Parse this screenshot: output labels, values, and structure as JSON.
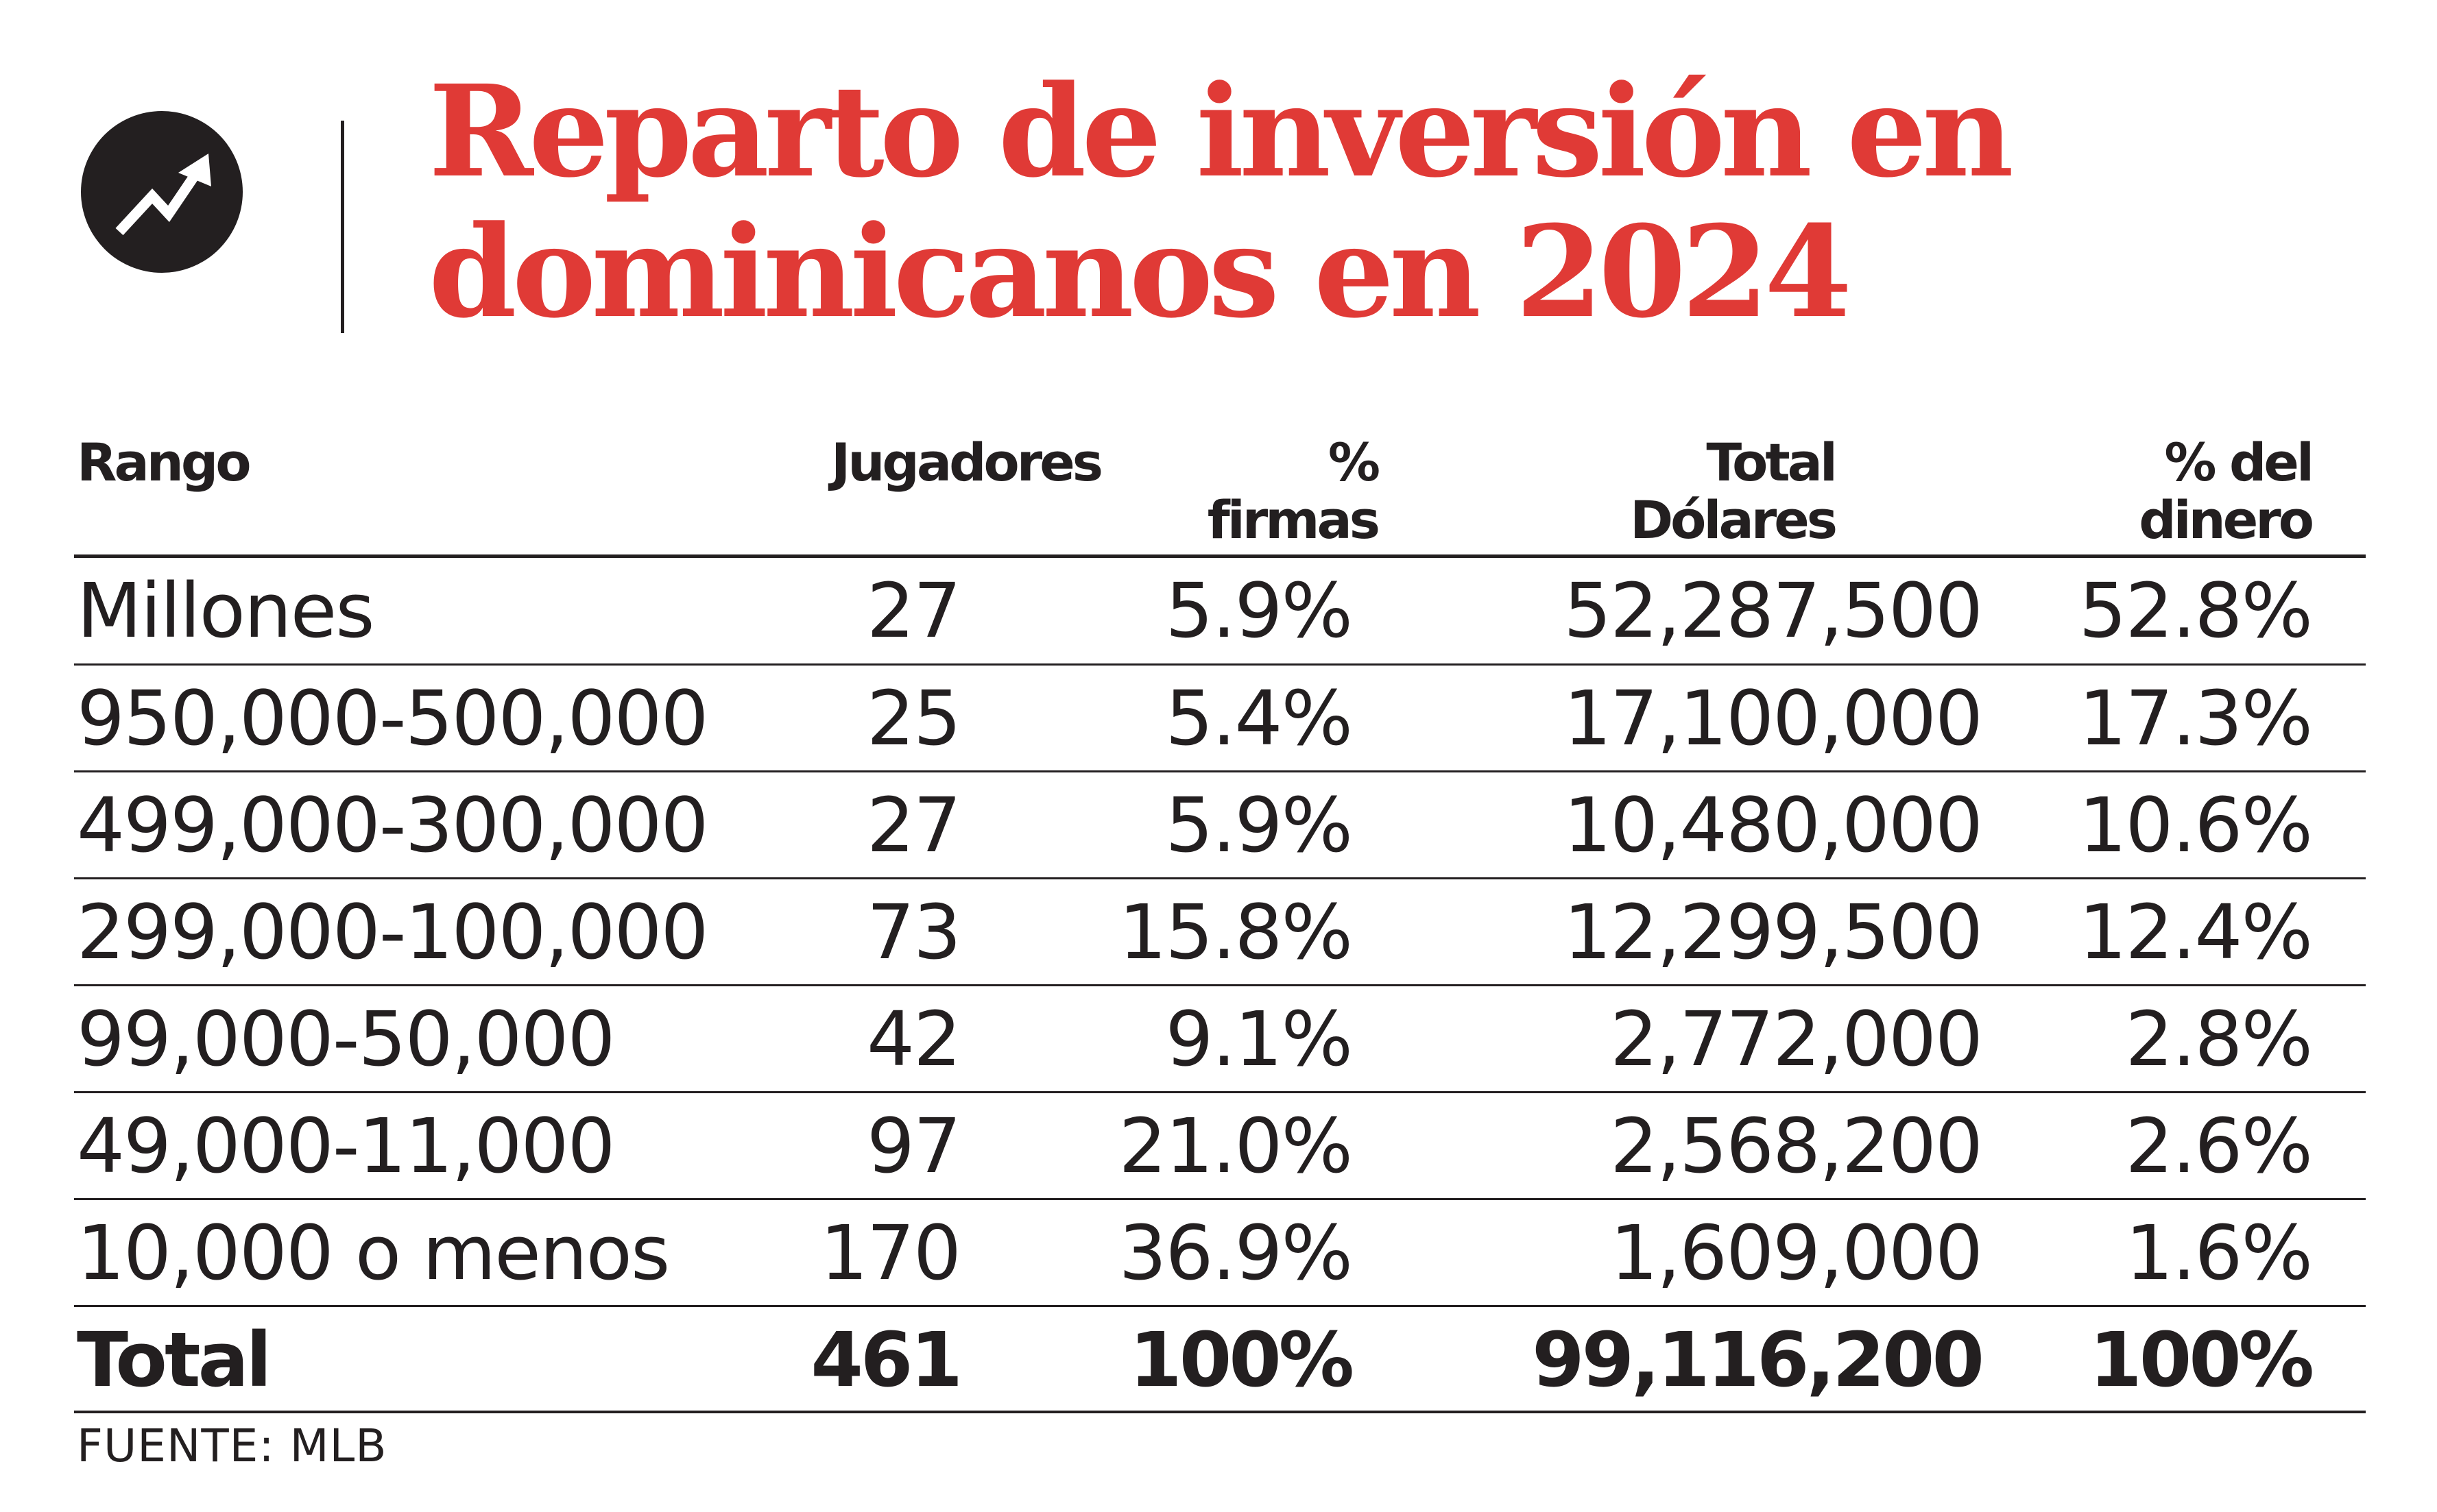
{
  "title": {
    "line1": "Reparto de inversión en",
    "line2": "dominicanos en 2024"
  },
  "logo_icon": "rising-arrow-icon",
  "colors": {
    "title": "#e03a36",
    "text": "#231f20",
    "logo_bg": "#231f20"
  },
  "table": {
    "headers": [
      {
        "line1": "Rango",
        "line2": ""
      },
      {
        "line1": "Jugadores",
        "line2": ""
      },
      {
        "line1": "%",
        "line2": "firmas"
      },
      {
        "line1": "Total",
        "line2": "Dólares"
      },
      {
        "line1": "% del",
        "line2": "dinero"
      }
    ],
    "rows": [
      {
        "rango": "Millones",
        "jugadores": "27",
        "firmas": "5.9%",
        "dolares": "52,287,500",
        "dinero": "52.8%"
      },
      {
        "rango": "950,000-500,000",
        "jugadores": "25",
        "firmas": "5.4%",
        "dolares": "17,100,000",
        "dinero": "17.3%"
      },
      {
        "rango": "499,000-300,000",
        "jugadores": "27",
        "firmas": "5.9%",
        "dolares": "10,480,000",
        "dinero": "10.6%"
      },
      {
        "rango": "299,000-100,000",
        "jugadores": "73",
        "firmas": "15.8%",
        "dolares": "12,299,500",
        "dinero": "12.4%"
      },
      {
        "rango": "99,000-50,000",
        "jugadores": "42",
        "firmas": "9.1%",
        "dolares": "2,772,000",
        "dinero": "2.8%"
      },
      {
        "rango": "49,000-11,000",
        "jugadores": "97",
        "firmas": "21.0%",
        "dolares": "2,568,200",
        "dinero": "2.6%"
      },
      {
        "rango": "10,000 o menos",
        "jugadores": "170",
        "firmas": "36.9%",
        "dolares": "1,609,000",
        "dinero": "1.6%"
      }
    ],
    "total": {
      "rango": "Total",
      "jugadores": "461",
      "firmas": "100%",
      "dolares": "99,116,200",
      "dinero": "100%"
    }
  },
  "source": "FUENTE: MLB",
  "chart_data": {
    "type": "table",
    "columns": [
      "Rango",
      "Jugadores",
      "% firmas",
      "Total Dólares",
      "% del dinero"
    ],
    "rows": [
      [
        "Millones",
        27,
        5.9,
        52287500,
        52.8
      ],
      [
        "950,000-500,000",
        25,
        5.4,
        17100000,
        17.3
      ],
      [
        "499,000-300,000",
        27,
        5.9,
        10480000,
        10.6
      ],
      [
        "299,000-100,000",
        73,
        15.8,
        12299500,
        12.4
      ],
      [
        "99,000-50,000",
        42,
        9.1,
        2772000,
        2.8
      ],
      [
        "49,000-11,000",
        97,
        21.0,
        2568200,
        2.6
      ],
      [
        "10,000 o menos",
        170,
        36.9,
        1609000,
        1.6
      ]
    ],
    "totals": [
      "Total",
      461,
      100,
      99116200,
      100
    ]
  }
}
